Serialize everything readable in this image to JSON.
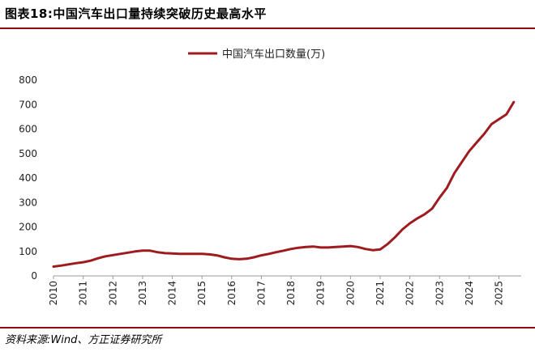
{
  "figure": {
    "title": "图表18:中国汽车出口量持续突破历史最高水平",
    "source": "资料来源:Wind、方正证券研究所"
  },
  "chart_data": {
    "type": "line",
    "title": "",
    "xlabel": "",
    "ylabel": "",
    "ylim": [
      0,
      800
    ],
    "yticks": [
      0,
      100,
      200,
      300,
      400,
      500,
      600,
      700,
      800
    ],
    "xlim": [
      2010,
      2025.75
    ],
    "xticks": [
      "2010",
      "2011",
      "2012",
      "2013",
      "2014",
      "2015",
      "2016",
      "2017",
      "2018",
      "2019",
      "2020",
      "2021",
      "2022",
      "2023",
      "2024",
      "2025"
    ],
    "grid": false,
    "legend_position": "top-center",
    "series": [
      {
        "name": "中国汽车出口数量(万)",
        "color": "#9e1b1f",
        "x": [
          2010.0,
          2010.25,
          2010.5,
          2010.75,
          2011.0,
          2011.25,
          2011.5,
          2011.75,
          2012.0,
          2012.25,
          2012.5,
          2012.75,
          2013.0,
          2013.25,
          2013.5,
          2013.75,
          2014.0,
          2014.25,
          2014.5,
          2014.75,
          2015.0,
          2015.25,
          2015.5,
          2015.75,
          2016.0,
          2016.25,
          2016.5,
          2016.75,
          2017.0,
          2017.25,
          2017.5,
          2017.75,
          2018.0,
          2018.25,
          2018.5,
          2018.75,
          2019.0,
          2019.25,
          2019.5,
          2019.75,
          2020.0,
          2020.25,
          2020.5,
          2020.75,
          2021.0,
          2021.25,
          2021.5,
          2021.75,
          2022.0,
          2022.25,
          2022.5,
          2022.75,
          2023.0,
          2023.25,
          2023.5,
          2023.75,
          2024.0,
          2024.25,
          2024.5,
          2024.75,
          2025.0,
          2025.25,
          2025.5
        ],
        "values": [
          38,
          42,
          47,
          52,
          56,
          62,
          72,
          80,
          85,
          90,
          95,
          100,
          103,
          103,
          97,
          93,
          92,
          90,
          90,
          90,
          90,
          88,
          84,
          76,
          70,
          68,
          70,
          76,
          84,
          90,
          97,
          103,
          110,
          115,
          118,
          120,
          116,
          116,
          118,
          120,
          122,
          118,
          110,
          105,
          108,
          130,
          158,
          190,
          215,
          235,
          252,
          275,
          320,
          360,
          420,
          465,
          510,
          545,
          580,
          620,
          640,
          660,
          710
        ]
      }
    ]
  }
}
